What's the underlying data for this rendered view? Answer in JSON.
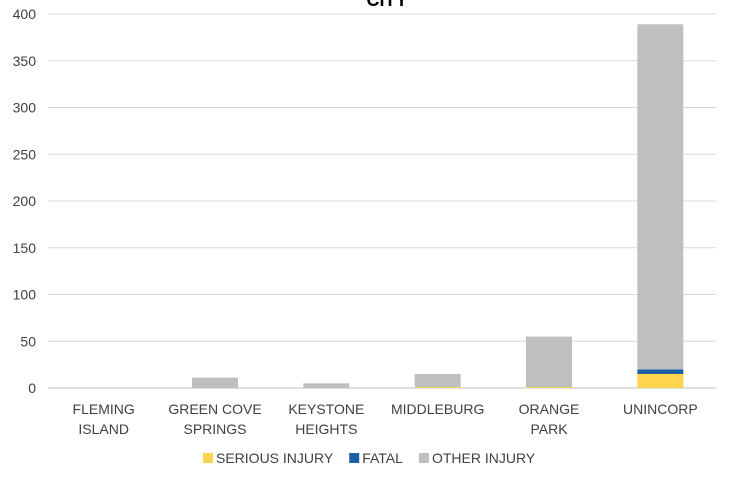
{
  "chart_data": {
    "type": "bar",
    "stacked": true,
    "title": "CITY",
    "categories": [
      [
        "FLEMING",
        "ISLAND"
      ],
      [
        "GREEN COVE",
        "SPRINGS"
      ],
      [
        "KEYSTONE",
        "HEIGHTS"
      ],
      [
        "MIDDLEBURG"
      ],
      [
        "ORANGE",
        "PARK"
      ],
      [
        "UNINCORP"
      ]
    ],
    "series": [
      {
        "name": "SERIOUS INJURY",
        "color": "#FFD54F",
        "values": [
          0,
          0,
          0,
          1,
          1,
          15
        ]
      },
      {
        "name": "FATAL",
        "color": "#1F5FA8",
        "values": [
          0,
          0,
          0,
          0,
          0,
          5
        ]
      },
      {
        "name": "OTHER INJURY",
        "color": "#BFBFBF",
        "values": [
          0,
          11,
          5,
          14,
          54,
          369
        ]
      }
    ],
    "ylim": [
      0,
      400
    ],
    "yticks": [
      0,
      50,
      100,
      150,
      200,
      250,
      300,
      350,
      400
    ],
    "grid": true,
    "legend": "bottom"
  }
}
